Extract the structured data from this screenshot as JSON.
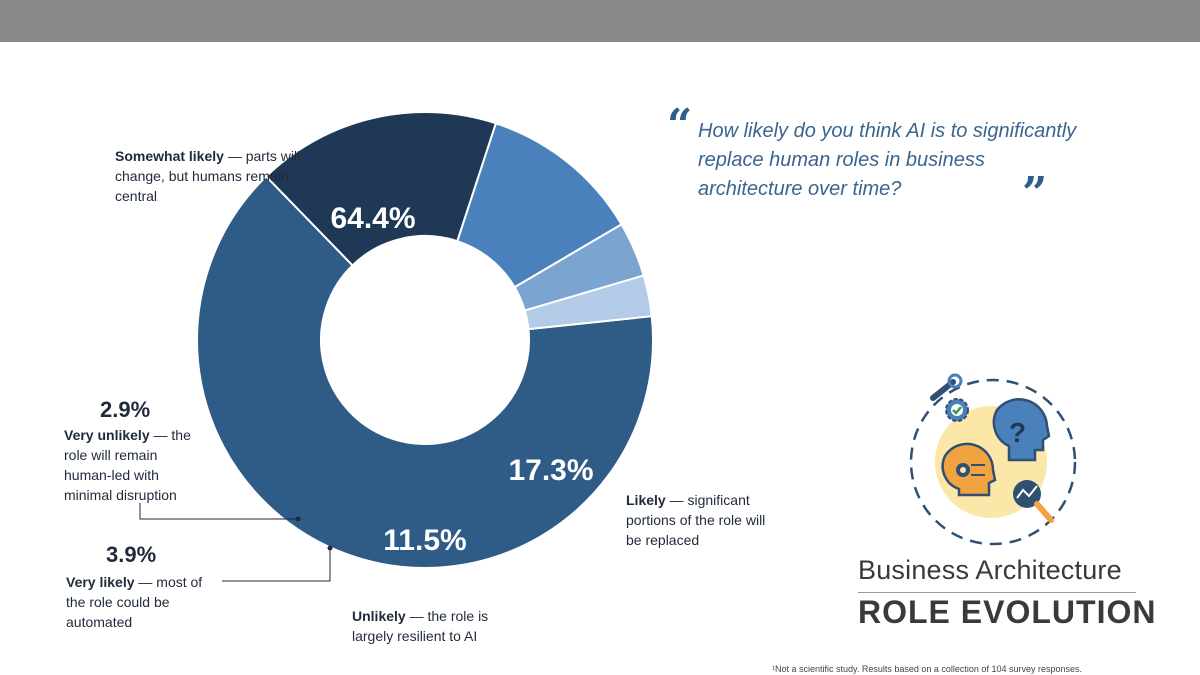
{
  "question": "How likely do you think AI is to significantly replace human roles in business architecture over time?",
  "brand": {
    "line1": "Business Architecture",
    "line2": "ROLE EVOLUTION"
  },
  "footnote": "¹Not a scientific study. Results based on a collection of 104 survey responses.",
  "chart_data": {
    "type": "pie",
    "variant": "donut",
    "slices": [
      {
        "label": "Somewhat likely",
        "desc": "— parts will change, but humans remain central",
        "value": 64.4,
        "value_label": "64.4%",
        "color": "#2f5b87"
      },
      {
        "label": "Likely",
        "desc": "— significant portions of the role will be replaced",
        "value": 17.3,
        "value_label": "17.3%",
        "color": "#1f3856"
      },
      {
        "label": "Unlikely",
        "desc": "— the role is largely resilient to AI",
        "value": 11.5,
        "value_label": "11.5%",
        "color": "#4a80bb"
      },
      {
        "label": "Very likely",
        "desc": "— most of the role could be automated",
        "value": 3.9,
        "value_label": "3.9%",
        "color": "#7ba4d0"
      },
      {
        "label": "Very unlikely",
        "desc": "— the role will remain human-led with minimal disruption",
        "value": 2.9,
        "value_label": "2.9%",
        "color": "#b3cbe6"
      }
    ]
  }
}
